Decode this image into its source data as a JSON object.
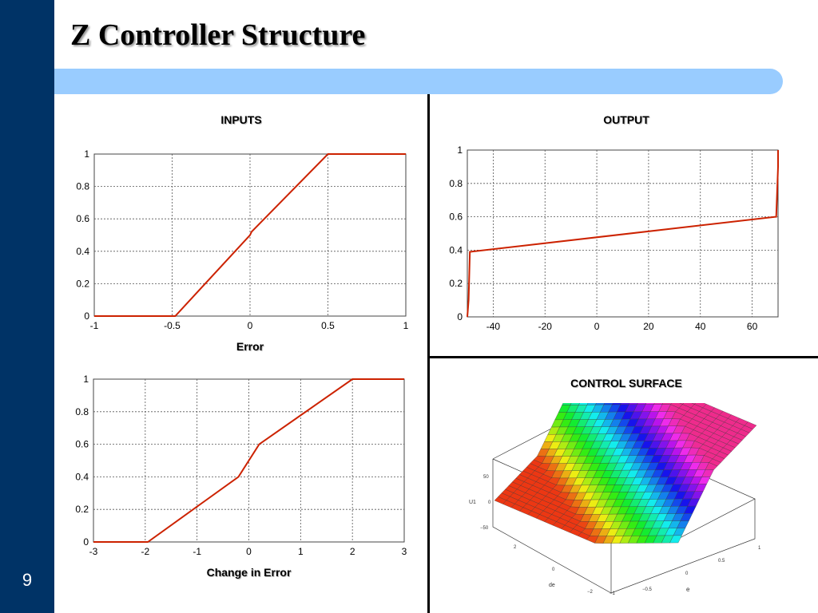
{
  "slide": {
    "title": "Z Controller Structure",
    "number": "9"
  },
  "sections": {
    "inputs": "INPUTS",
    "output": "OUTPUT",
    "control_surface": "CONTROL SURFACE"
  },
  "colors": {
    "sidebar": "#003366",
    "title_bar": "#99ccff",
    "series_line": "#cc2200"
  },
  "chart_data": [
    {
      "type": "line",
      "title": "",
      "xlabel": "Error",
      "ylabel": "",
      "xlim": [
        -1,
        1
      ],
      "ylim": [
        0,
        1
      ],
      "xticks": [
        -1,
        -0.5,
        0,
        0.5,
        1
      ],
      "xtick_labels": [
        "-1",
        "-0.5",
        "0",
        "0.5",
        "1"
      ],
      "yticks": [
        0,
        0.2,
        0.4,
        0.6,
        0.8,
        1
      ],
      "ytick_labels": [
        "0",
        "0.2",
        "0.4",
        "0.6",
        "0.8",
        "1"
      ],
      "grid": true,
      "series": [
        {
          "x": [
            -1,
            -0.48,
            0,
            0.01,
            0.5,
            1
          ],
          "y": [
            0,
            0,
            0.5,
            0.52,
            1,
            1
          ]
        }
      ]
    },
    {
      "type": "line",
      "title": "",
      "xlabel": "Change in Error",
      "ylabel": "",
      "xlim": [
        -3,
        3
      ],
      "ylim": [
        0,
        1
      ],
      "xticks": [
        -3,
        -2,
        -1,
        0,
        1,
        2,
        3
      ],
      "xtick_labels": [
        "-3",
        "-2",
        "-1",
        "0",
        "1",
        "2",
        "3"
      ],
      "yticks": [
        0,
        0.2,
        0.4,
        0.6,
        0.8,
        1
      ],
      "ytick_labels": [
        "0",
        "0.2",
        "0.4",
        "0.6",
        "0.8",
        "1"
      ],
      "grid": true,
      "series": [
        {
          "x": [
            -3,
            -1.95,
            -0.2,
            0.2,
            2,
            3
          ],
          "y": [
            0,
            0,
            0.4,
            0.6,
            1,
            1
          ]
        }
      ]
    },
    {
      "type": "line",
      "title": "",
      "xlabel": "",
      "ylabel": "",
      "xlim": [
        -50,
        70
      ],
      "ylim": [
        0,
        1
      ],
      "xticks": [
        -40,
        -20,
        0,
        20,
        40,
        60
      ],
      "xtick_labels": [
        "-40",
        "-20",
        "0",
        "20",
        "40",
        "60"
      ],
      "yticks": [
        0,
        0.2,
        0.4,
        0.6,
        0.8,
        1
      ],
      "ytick_labels": [
        "0",
        "0.2",
        "0.4",
        "0.6",
        "0.8",
        "1"
      ],
      "grid": true,
      "series": [
        {
          "x": [
            -50,
            -49.5,
            -49,
            69,
            69.3,
            70,
            70
          ],
          "y": [
            0,
            0.1,
            0.39,
            0.6,
            0.6,
            0.9,
            1
          ]
        }
      ]
    }
  ],
  "surface_plot": {
    "zlabel": "U1",
    "x_axis_label": "de",
    "y_axis_label": "e",
    "zticks": [
      "50",
      "0",
      "−50"
    ],
    "de_ticks": [
      "2",
      "0",
      "−2"
    ],
    "e_ticks": [
      "1",
      "0.5",
      "0",
      "−0.5",
      "−1"
    ]
  }
}
